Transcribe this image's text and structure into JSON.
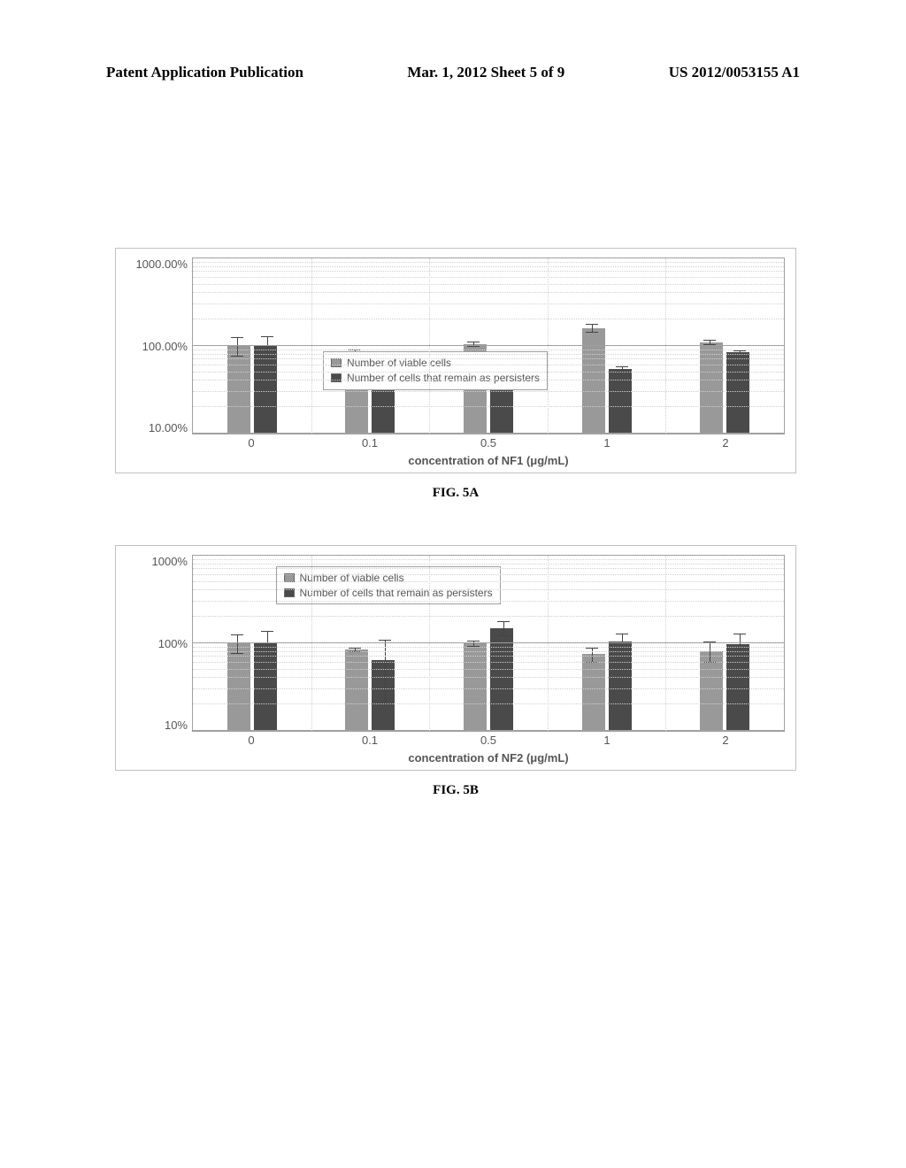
{
  "header": {
    "left": "Patent Application Publication",
    "center": "Mar. 1, 2012  Sheet 5 of 9",
    "right": "US 2012/0053155 A1"
  },
  "chartA": {
    "type": "bar",
    "title": "",
    "x_label": "concentration of NF1 (μg/mL)",
    "y_ticks": [
      "1000.00%",
      "100.00%",
      "10.00%"
    ],
    "categories": [
      "0",
      "0.1",
      "0.5",
      "1",
      "2"
    ],
    "series": [
      {
        "name": "Number of viable cells",
        "color": "#999999"
      },
      {
        "name": "Number of cells that remain as persisters",
        "color": "#4a4a4a"
      }
    ],
    "values_viable": [
      100,
      80,
      105,
      160,
      110
    ],
    "values_persist": [
      100,
      70,
      50,
      55,
      85
    ],
    "err_viable": [
      25,
      12,
      8,
      18,
      8
    ],
    "err_persist": [
      28,
      10,
      8,
      4,
      4
    ],
    "background_color": "#ffffff",
    "grid_color": "#d0d0d0",
    "axis_color": "#a0a0a0",
    "legend_pos": "middle",
    "caption": "FIG. 5A"
  },
  "chartB": {
    "type": "bar",
    "title": "",
    "x_label": "concentration of NF2 (μg/mL)",
    "y_ticks": [
      "1000%",
      "100%",
      "10%"
    ],
    "categories": [
      "0",
      "0.1",
      "0.5",
      "1",
      "2"
    ],
    "series": [
      {
        "name": "Number of viable cells",
        "color": "#999999"
      },
      {
        "name": "Number of cells that remain as persisters",
        "color": "#4a4a4a"
      }
    ],
    "values_viable": [
      100,
      85,
      100,
      75,
      82
    ],
    "values_persist": [
      100,
      65,
      150,
      105,
      98
    ],
    "err_viable": [
      25,
      5,
      8,
      15,
      22
    ],
    "err_persist": [
      40,
      45,
      30,
      25,
      30
    ],
    "background_color": "#ffffff",
    "grid_color": "#d0d0d0",
    "axis_color": "#a0a0a0",
    "legend_pos": "top",
    "caption": "FIG. 5B"
  }
}
